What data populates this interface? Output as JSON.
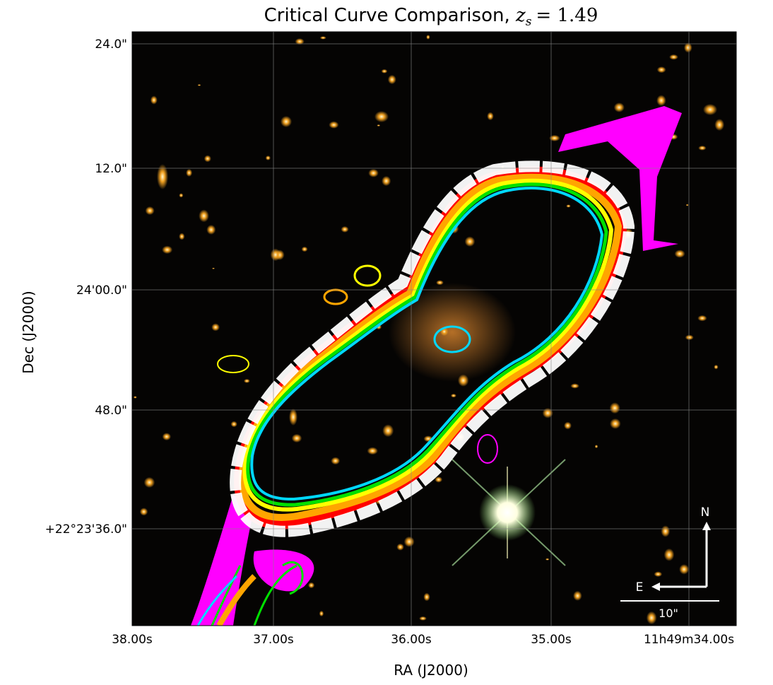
{
  "figure": {
    "title": "Critical Curve Comparison,",
    "title_math": {
      "symbol": "z",
      "subscript": "s",
      "rest": "= 1.49"
    },
    "xlabel": "RA (J2000)",
    "ylabel": "Dec (J2000)",
    "xtick_labels": [
      "38.00s",
      "37.00s",
      "36.00s",
      "35.00s",
      "11h49m34.00s"
    ],
    "ytick_labels": [
      "24.0\"",
      "12.0\"",
      "24'00.0\"",
      "48.0\"",
      "+22°23'36.0\""
    ],
    "compass": {
      "north": "N",
      "east": "E"
    },
    "scale_bar": "10\""
  }
}
